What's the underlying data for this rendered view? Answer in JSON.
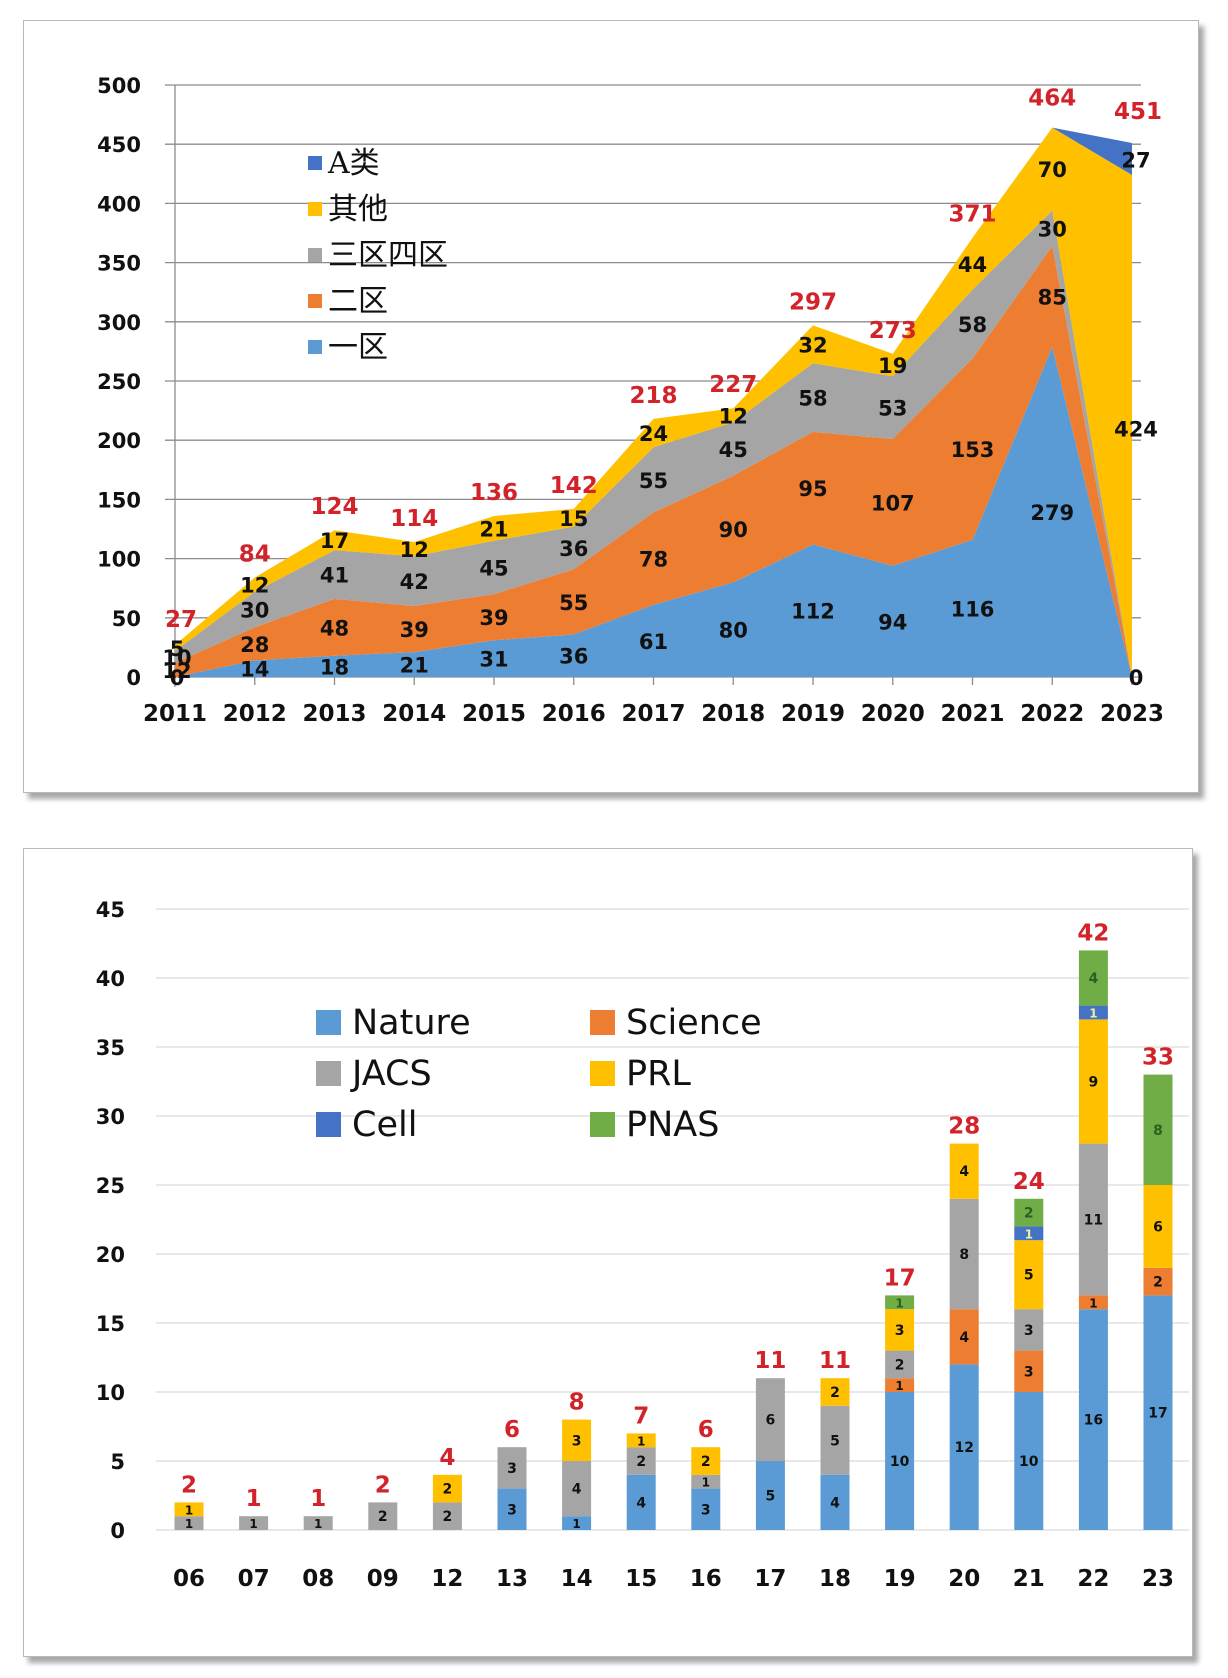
{
  "chart_data": [
    {
      "type": "area",
      "stacked": true,
      "title": "",
      "xlabel": "",
      "ylabel": "",
      "categories": [
        "2011",
        "2012",
        "2013",
        "2014",
        "2015",
        "2016",
        "2017",
        "2018",
        "2019",
        "2020",
        "2021",
        "2022",
        "2023"
      ],
      "ylim": [
        0,
        500
      ],
      "yticks": [
        0,
        50,
        100,
        150,
        200,
        250,
        300,
        350,
        400,
        450,
        500
      ],
      "grid": true,
      "legend_position": "top-left",
      "legend_order": [
        "A类",
        "其他",
        "三区四区",
        "二区",
        "一区"
      ],
      "series": [
        {
          "name": "一区",
          "color": "#5b9bd5",
          "values": [
            0,
            14,
            18,
            21,
            31,
            36,
            61,
            80,
            112,
            94,
            116,
            279,
            0
          ]
        },
        {
          "name": "二区",
          "color": "#ed7d31",
          "values": [
            12,
            28,
            48,
            39,
            39,
            55,
            78,
            90,
            95,
            107,
            153,
            85,
            0
          ]
        },
        {
          "name": "三区四区",
          "color": "#a5a5a5",
          "values": [
            10,
            30,
            41,
            42,
            45,
            36,
            55,
            45,
            58,
            53,
            58,
            30,
            0
          ]
        },
        {
          "name": "其他",
          "color": "#ffc000",
          "values": [
            5,
            12,
            17,
            12,
            21,
            15,
            24,
            12,
            32,
            19,
            44,
            70,
            424
          ]
        },
        {
          "name": "A类",
          "color": "#4472c4",
          "values": [
            0,
            0,
            0,
            0,
            0,
            0,
            0,
            0,
            0,
            0,
            0,
            0,
            27
          ]
        }
      ],
      "series_labels": {
        "一区": [
          "0",
          "14",
          "18",
          "21",
          "31",
          "36",
          "61",
          "80",
          "112",
          "94",
          "116",
          "279",
          "0"
        ],
        "二区": [
          "12",
          "28",
          "48",
          "39",
          "39",
          "55",
          "78",
          "90",
          "95",
          "107",
          "153",
          "85",
          ""
        ],
        "三区四区": [
          "10",
          "30",
          "41",
          "42",
          "45",
          "36",
          "55",
          "45",
          "58",
          "53",
          "58",
          "30",
          ""
        ],
        "其他": [
          "5",
          "12",
          "17",
          "12",
          "21",
          "15",
          "24",
          "12",
          "32",
          "19",
          "44",
          "70",
          "424"
        ],
        "A类": [
          "",
          "",
          "",
          "",
          "",
          "",
          "",
          "",
          "",
          "",
          "",
          "",
          "27"
        ]
      },
      "totals": [
        "27",
        "84",
        "124",
        "114",
        "136",
        "142",
        "218",
        "227",
        "297",
        "273",
        "371",
        "464",
        "451"
      ]
    },
    {
      "type": "bar",
      "stacked": true,
      "title": "",
      "xlabel": "",
      "ylabel": "",
      "categories": [
        "06",
        "07",
        "08",
        "09",
        "12",
        "13",
        "14",
        "15",
        "16",
        "17",
        "18",
        "19",
        "20",
        "21",
        "22",
        "23"
      ],
      "ylim": [
        0,
        45
      ],
      "yticks": [
        0,
        5,
        10,
        15,
        20,
        25,
        30,
        35,
        40,
        45
      ],
      "grid": true,
      "legend_position": "top-left",
      "legend_columns": [
        [
          "Nature",
          "JACS",
          "Cell"
        ],
        [
          "Science",
          "PRL",
          "PNAS"
        ]
      ],
      "series": [
        {
          "name": "Nature",
          "color": "#5b9bd5",
          "values": [
            0,
            0,
            0,
            0,
            0,
            3,
            1,
            4,
            3,
            5,
            4,
            10,
            12,
            10,
            16,
            17
          ]
        },
        {
          "name": "Science",
          "color": "#ed7d31",
          "values": [
            0,
            0,
            0,
            0,
            0,
            0,
            0,
            0,
            0,
            0,
            0,
            1,
            4,
            3,
            1,
            2
          ]
        },
        {
          "name": "JACS",
          "color": "#a5a5a5",
          "values": [
            1,
            1,
            1,
            2,
            2,
            3,
            4,
            2,
            1,
            6,
            5,
            2,
            8,
            3,
            11,
            0
          ]
        },
        {
          "name": "PRL",
          "color": "#ffc000",
          "values": [
            1,
            0,
            0,
            0,
            2,
            0,
            3,
            1,
            2,
            0,
            2,
            3,
            4,
            5,
            9,
            6
          ]
        },
        {
          "name": "Cell",
          "color": "#4472c4",
          "values": [
            0,
            0,
            0,
            0,
            0,
            0,
            0,
            0,
            0,
            0,
            0,
            0,
            0,
            1,
            1,
            0
          ]
        },
        {
          "name": "PNAS",
          "color": "#70ad47",
          "values": [
            0,
            0,
            0,
            0,
            0,
            0,
            0,
            0,
            0,
            0,
            0,
            1,
            0,
            2,
            4,
            8
          ]
        }
      ],
      "totals": [
        "2",
        "1",
        "1",
        "2",
        "4",
        "6",
        "8",
        "7",
        "6",
        "11",
        "11",
        "17",
        "28",
        "24",
        "42",
        "33"
      ]
    }
  ]
}
